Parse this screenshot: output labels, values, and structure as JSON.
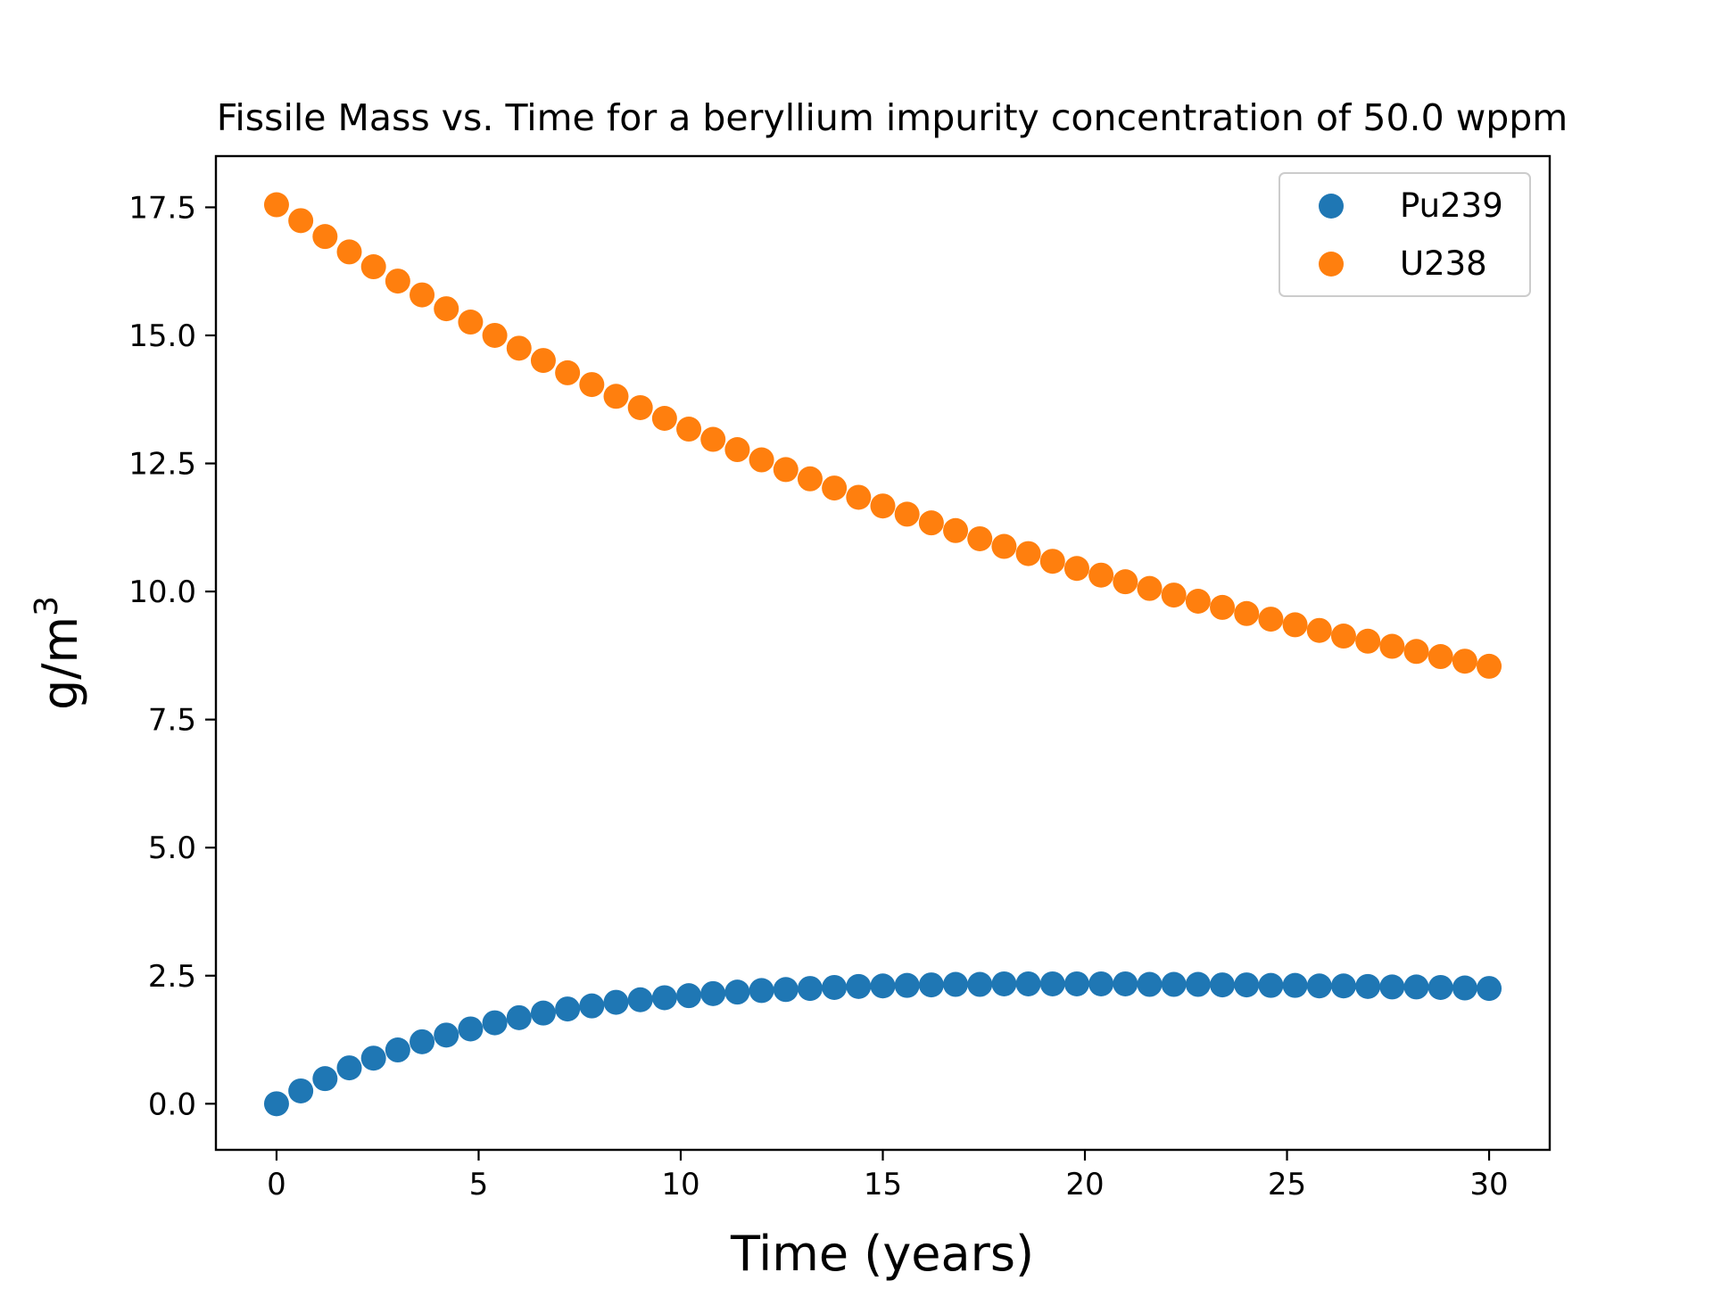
{
  "chart_data": {
    "type": "scatter",
    "title": "Fissile Mass vs. Time for a beryllium impurity concentration of 50.0 wppm",
    "xlabel": "Time (years)",
    "ylabel_base": "g/m",
    "ylabel_sup": "3",
    "xlim": [
      -1.5,
      31.5
    ],
    "ylim": [
      -0.9,
      18.5
    ],
    "x_ticks": [
      0,
      5,
      10,
      15,
      20,
      25,
      30
    ],
    "x_tick_labels": [
      "0",
      "5",
      "10",
      "15",
      "20",
      "25",
      "30"
    ],
    "y_ticks": [
      0.0,
      2.5,
      5.0,
      7.5,
      10.0,
      12.5,
      15.0,
      17.5
    ],
    "y_tick_labels": [
      "0.0",
      "2.5",
      "5.0",
      "7.5",
      "10.0",
      "12.5",
      "15.0",
      "17.5"
    ],
    "grid": false,
    "legend_position": "top-right",
    "x": [
      0,
      0.6,
      1.2,
      1.8,
      2.4,
      3.0,
      3.6,
      4.2,
      4.8,
      5.4,
      6.0,
      6.6,
      7.2,
      7.8,
      8.4,
      9.0,
      9.6,
      10.2,
      10.8,
      11.4,
      12.0,
      12.6,
      13.2,
      13.8,
      14.4,
      15.0,
      15.6,
      16.2,
      16.8,
      17.4,
      18.0,
      18.6,
      19.2,
      19.8,
      20.4,
      21.0,
      21.6,
      22.2,
      22.8,
      23.4,
      24.0,
      24.6,
      25.2,
      25.8,
      26.4,
      27.0,
      27.6,
      28.2,
      28.8,
      29.4,
      30.0
    ],
    "series": [
      {
        "name": "Pu239",
        "color": "#1f77b4",
        "values": [
          0.0,
          0.25,
          0.49,
          0.7,
          0.89,
          1.05,
          1.21,
          1.34,
          1.46,
          1.58,
          1.68,
          1.77,
          1.85,
          1.91,
          1.98,
          2.03,
          2.07,
          2.11,
          2.15,
          2.18,
          2.21,
          2.23,
          2.25,
          2.27,
          2.29,
          2.3,
          2.31,
          2.32,
          2.33,
          2.33,
          2.34,
          2.34,
          2.34,
          2.34,
          2.34,
          2.34,
          2.33,
          2.33,
          2.33,
          2.32,
          2.32,
          2.31,
          2.31,
          2.3,
          2.3,
          2.29,
          2.28,
          2.28,
          2.27,
          2.26,
          2.25
        ]
      },
      {
        "name": "U238",
        "color": "#ff7f0e",
        "values": [
          17.55,
          17.24,
          16.93,
          16.63,
          16.34,
          16.06,
          15.79,
          15.52,
          15.26,
          15.0,
          14.75,
          14.51,
          14.27,
          14.04,
          13.81,
          13.59,
          13.38,
          13.17,
          12.97,
          12.77,
          12.57,
          12.38,
          12.2,
          12.02,
          11.84,
          11.67,
          11.51,
          11.34,
          11.19,
          11.03,
          10.88,
          10.74,
          10.59,
          10.45,
          10.32,
          10.19,
          10.06,
          9.93,
          9.81,
          9.69,
          9.57,
          9.46,
          9.35,
          9.24,
          9.13,
          9.03,
          8.93,
          8.83,
          8.73,
          8.64,
          8.54
        ]
      }
    ]
  }
}
